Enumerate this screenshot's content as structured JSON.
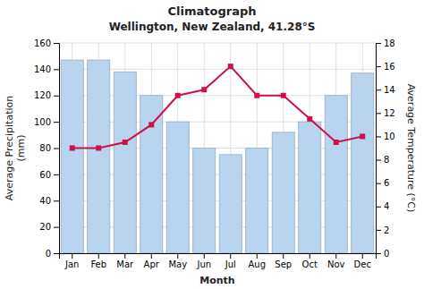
{
  "chart_data": {
    "type": "bar",
    "title": "Climatograph",
    "subtitle": "Wellington, New Zealand, 41.28°S",
    "xlabel": "Month",
    "ylabel": "Average Precipitation\n(mm)",
    "y2label": "Average Temperature (°C)",
    "categories": [
      "Jan",
      "Feb",
      "Mar",
      "Apr",
      "May",
      "Jun",
      "Jul",
      "Aug",
      "Sep",
      "Oct",
      "Nov",
      "Dec"
    ],
    "series": [
      {
        "type": "bar",
        "color": "#b8d4ee",
        "values": [
          147,
          147,
          138,
          120,
          100,
          80,
          75,
          80,
          92,
          100,
          120,
          137
        ]
      },
      {
        "type": "line",
        "axis": "y2",
        "color": "#cc1144",
        "marker": "square",
        "values": [
          9.0,
          9.0,
          9.5,
          11.0,
          13.5,
          14.0,
          16.0,
          13.5,
          13.5,
          11.5,
          9.5,
          10.0
        ]
      }
    ],
    "ylim": [
      0,
      160
    ],
    "yticks": [
      0,
      20,
      40,
      60,
      80,
      100,
      120,
      140,
      160
    ],
    "y2lim": [
      0,
      18
    ],
    "y2ticks": [
      0,
      2,
      4,
      6,
      8,
      10,
      12,
      14,
      16,
      18
    ],
    "grid": true
  }
}
